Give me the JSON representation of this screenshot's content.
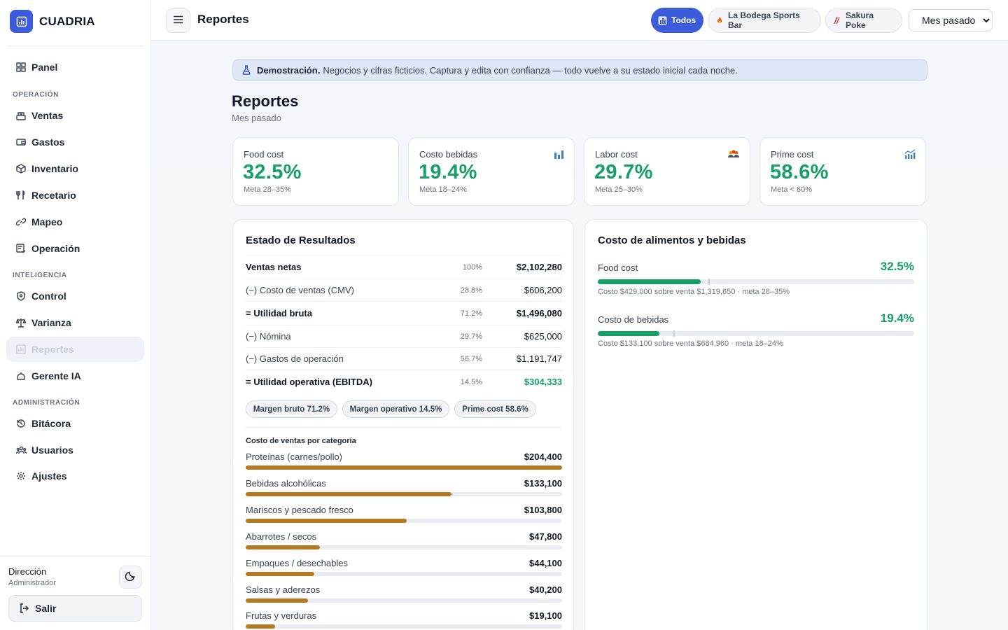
{
  "brand": {
    "name": "CUADRIA"
  },
  "sidebar": {
    "items": [
      {
        "label": "Panel",
        "icon": "grid-icon"
      },
      {
        "label": "Ventas",
        "icon": "register-icon"
      },
      {
        "label": "Gastos",
        "icon": "wallet-icon"
      },
      {
        "label": "Inventario",
        "icon": "box-icon"
      },
      {
        "label": "Recetario",
        "icon": "utensils-icon"
      },
      {
        "label": "Mapeo",
        "icon": "link-icon"
      },
      {
        "label": "Operación",
        "icon": "checklist-icon"
      },
      {
        "label": "Control",
        "icon": "shield-icon"
      },
      {
        "label": "Varianza",
        "icon": "scale-icon"
      },
      {
        "label": "Reportes",
        "icon": "chart-icon"
      },
      {
        "label": "Gerente IA",
        "icon": "robot-icon"
      },
      {
        "label": "Bitácora",
        "icon": "history-icon"
      },
      {
        "label": "Usuarios",
        "icon": "users-icon"
      },
      {
        "label": "Ajustes",
        "icon": "gear-icon"
      }
    ],
    "sections": [
      "OPERACIÓN",
      "INTELIGENCIA",
      "ADMINISTRACIÓN"
    ],
    "active": "Reportes",
    "user": {
      "name": "Dirección",
      "role": "Administrador"
    },
    "logout_label": "Salir"
  },
  "topbar": {
    "title": "Reportes",
    "chips": [
      {
        "label": "Todos",
        "icon": "chart-icon",
        "selected": true
      },
      {
        "label": "La Bodega Sports Bar",
        "icon": "flame-icon",
        "selected": false
      },
      {
        "label": "Sakura Poke",
        "icon": "chopsticks-icon",
        "selected": false
      }
    ],
    "period": "Mes pasado"
  },
  "banner": {
    "strong": "Demostración.",
    "text": "Negocios y cifras ficticios. Captura y edita con confianza — todo vuelve a su estado inicial cada noche."
  },
  "page": {
    "title": "Reportes",
    "subtitle": "Mes pasado"
  },
  "kpis": [
    {
      "label": "Food cost",
      "value": "32.5%",
      "meta": "Meta 28–35%",
      "icon": ""
    },
    {
      "label": "Costo bebidas",
      "value": "19.4%",
      "meta": "Meta 18–24%",
      "icon": "bar-chart-icon"
    },
    {
      "label": "Labor cost",
      "value": "29.7%",
      "meta": "Meta 25–30%",
      "icon": "people-icon"
    },
    {
      "label": "Prime cost",
      "value": "58.6%",
      "meta": "Meta < 60%",
      "icon": "trend-chart-icon"
    }
  ],
  "income": {
    "title": "Estado de Resultados",
    "rows": [
      {
        "label": "Ventas netas",
        "pct": "100%",
        "amount": "$2,102,280"
      },
      {
        "label": "(−) Costo de ventas (CMV)",
        "pct": "28.8%",
        "amount": "$606,200"
      },
      {
        "label": "= Utilidad bruta",
        "pct": "71.2%",
        "amount": "$1,496,080"
      },
      {
        "label": "(−) Nómina",
        "pct": "29.7%",
        "amount": "$625,000"
      },
      {
        "label": "(−) Gastos de operación",
        "pct": "56.7%",
        "amount": "$1,191,747"
      },
      {
        "label": "= Utilidad operativa (EBITDA)",
        "pct": "14.5%",
        "amount": "$304,333"
      }
    ],
    "pills": [
      "Margen bruto 71.2%",
      "Margen operativo 14.5%",
      "Prime cost 58.6%"
    ],
    "categories_title": "Costo de ventas por categoría",
    "categories": [
      {
        "label": "Proteínas (carnes/pollo)",
        "amount": "$204,400",
        "value": 204400
      },
      {
        "label": "Bebidas alcohólicas",
        "amount": "$133,100",
        "value": 133100
      },
      {
        "label": "Mariscos y pescado fresco",
        "amount": "$103,800",
        "value": 103800
      },
      {
        "label": "Abarrotes / secos",
        "amount": "$47,800",
        "value": 47800
      },
      {
        "label": "Empaques / desechables",
        "amount": "$44,100",
        "value": 44100
      },
      {
        "label": "Salsas y aderezos",
        "amount": "$40,200",
        "value": 40200
      },
      {
        "label": "Frutas y verduras",
        "amount": "$19,100",
        "value": 19100
      }
    ]
  },
  "costs": {
    "title": "Costo de alimentos y bebidas",
    "items": [
      {
        "label": "Food cost",
        "value": "32.5%",
        "note": "Costo $429,000 sobre venta $1,319,650 · meta 28–35%",
        "fill": 0.325,
        "target": 0.35
      },
      {
        "label": "Costo de bebidas",
        "value": "19.4%",
        "note": "Costo $133,100 sobre venta $684,960 · meta 18–24%",
        "fill": 0.194,
        "target": 0.24
      }
    ]
  },
  "colors": {
    "accent": "#3b5bdb",
    "success": "#16a067",
    "category_bar": "#b7791f"
  }
}
